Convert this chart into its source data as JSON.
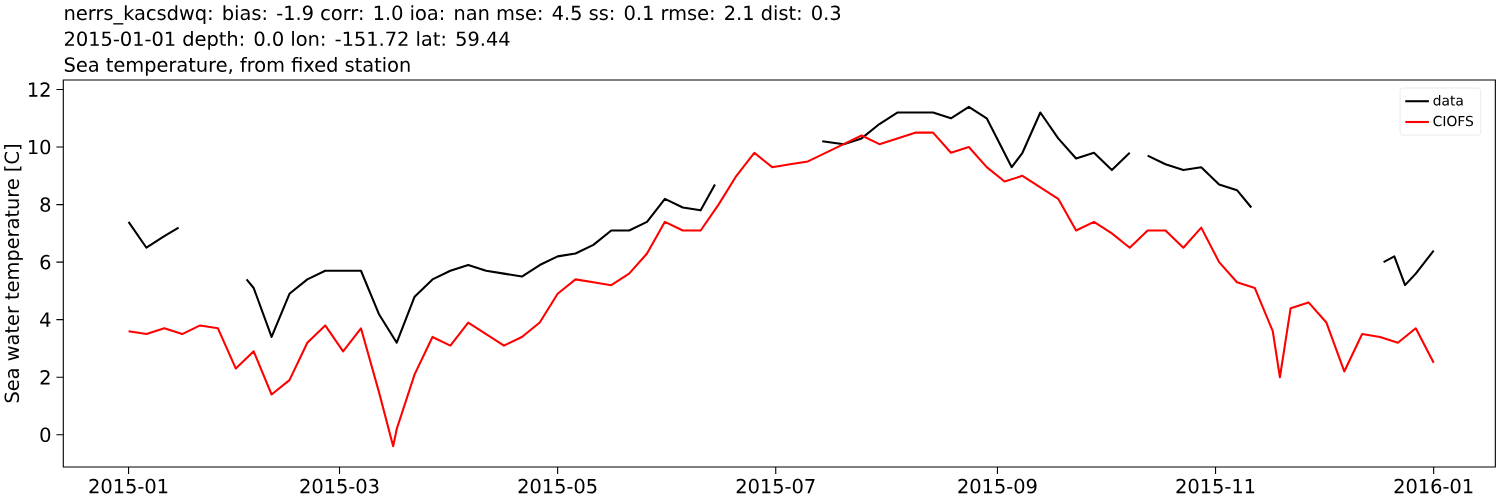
{
  "chart_data": {
    "type": "line",
    "title": "nerrs_kacsdwq: bias: -1.9  corr: 1.0  ioa: nan  mse: 4.5  ss: 0.1  rmse: 2.1  dist: 0.3",
    "subtitle": "2015-01-01 depth: 0.0 lon: -151.72 lat: 59.44",
    "annotations": [
      "Sea temperature, from fixed station"
    ],
    "ylabel": "Sea water temperature [C]",
    "xlim": [
      "2014-12-13T18:00",
      "2016-01-18T06:00"
    ],
    "xticks": [
      {
        "value": "2015-01-01",
        "label": "2015-01"
      },
      {
        "value": "2015-03-01",
        "label": "2015-03"
      },
      {
        "value": "2015-05-01",
        "label": "2015-05"
      },
      {
        "value": "2015-07-01",
        "label": "2015-07"
      },
      {
        "value": "2015-09-01",
        "label": "2015-09"
      },
      {
        "value": "2015-11-01",
        "label": "2015-11"
      },
      {
        "value": "2016-01-01",
        "label": "2016-01"
      }
    ],
    "ylim": [
      -1.12,
      12.33
    ],
    "yticks": [
      0,
      2,
      4,
      6,
      8,
      10,
      12
    ],
    "grid": false,
    "legend": "top right",
    "marker": "none",
    "line_style": "solid",
    "series": [
      {
        "name": "data",
        "color": "#000000",
        "x": [
          "2015-01-01",
          "2015-01-06",
          "2015-01-11",
          "2015-01-15",
          "2015-01-25",
          "2015-02-03",
          "2015-02-05",
          "2015-02-10",
          "2015-02-15",
          "2015-02-20",
          "2015-02-25",
          "2015-03-02",
          "2015-03-07",
          "2015-03-12",
          "2015-03-17",
          "2015-03-22",
          "2015-03-27",
          "2015-04-01",
          "2015-04-06",
          "2015-04-11",
          "2015-04-16",
          "2015-04-21",
          "2015-04-26",
          "2015-05-01",
          "2015-05-06",
          "2015-05-11",
          "2015-05-16",
          "2015-05-21",
          "2015-05-26",
          "2015-05-31",
          "2015-06-05",
          "2015-06-10",
          "2015-06-14",
          "2015-06-30",
          "2015-07-14",
          "2015-07-20",
          "2015-07-25",
          "2015-07-30",
          "2015-08-04",
          "2015-08-09",
          "2015-08-14",
          "2015-08-19",
          "2015-08-24",
          "2015-08-29",
          "2015-09-05",
          "2015-09-08",
          "2015-09-13",
          "2015-09-18",
          "2015-09-23",
          "2015-09-28",
          "2015-10-03",
          "2015-10-08",
          "2015-10-10",
          "2015-10-13",
          "2015-10-18",
          "2015-10-23",
          "2015-10-28",
          "2015-11-02",
          "2015-11-07",
          "2015-11-11",
          "2015-11-25",
          "2015-12-18",
          "2015-12-21",
          "2015-12-24",
          "2015-12-27",
          "2016-01-01"
        ],
        "values": [
          7.4,
          6.5,
          6.9,
          7.2,
          null,
          5.4,
          5.1,
          3.4,
          4.9,
          5.4,
          5.7,
          5.7,
          5.7,
          4.2,
          3.2,
          4.8,
          5.4,
          5.7,
          5.9,
          5.7,
          5.6,
          5.5,
          5.9,
          6.2,
          6.3,
          6.6,
          7.1,
          7.1,
          7.4,
          8.2,
          7.9,
          7.8,
          8.7,
          null,
          10.2,
          10.1,
          10.3,
          10.8,
          11.2,
          11.2,
          11.2,
          11.0,
          11.4,
          11.0,
          9.3,
          9.8,
          11.2,
          10.3,
          9.6,
          9.8,
          9.2,
          9.8,
          null,
          9.7,
          9.4,
          9.2,
          9.3,
          8.7,
          8.5,
          7.9,
          null,
          6.0,
          6.2,
          5.2,
          5.6,
          6.4
        ]
      },
      {
        "name": "CIOFS",
        "color": "#ff0000",
        "x": [
          "2015-01-01",
          "2015-01-06",
          "2015-01-11",
          "2015-01-16",
          "2015-01-21",
          "2015-01-26",
          "2015-01-31",
          "2015-02-05",
          "2015-02-10",
          "2015-02-15",
          "2015-02-20",
          "2015-02-25",
          "2015-03-02",
          "2015-03-07",
          "2015-03-12",
          "2015-03-16",
          "2015-03-17",
          "2015-03-22",
          "2015-03-27",
          "2015-04-01",
          "2015-04-06",
          "2015-04-11",
          "2015-04-16",
          "2015-04-21",
          "2015-04-26",
          "2015-05-01",
          "2015-05-06",
          "2015-05-11",
          "2015-05-16",
          "2015-05-21",
          "2015-05-26",
          "2015-05-31",
          "2015-06-05",
          "2015-06-10",
          "2015-06-15",
          "2015-06-20",
          "2015-06-25",
          "2015-06-30",
          "2015-07-05",
          "2015-07-10",
          "2015-07-15",
          "2015-07-20",
          "2015-07-25",
          "2015-07-30",
          "2015-08-04",
          "2015-08-09",
          "2015-08-14",
          "2015-08-19",
          "2015-08-24",
          "2015-08-29",
          "2015-09-03",
          "2015-09-08",
          "2015-09-13",
          "2015-09-18",
          "2015-09-23",
          "2015-09-28",
          "2015-10-03",
          "2015-10-08",
          "2015-10-13",
          "2015-10-18",
          "2015-10-23",
          "2015-10-28",
          "2015-11-02",
          "2015-11-07",
          "2015-11-12",
          "2015-11-17",
          "2015-11-19",
          "2015-11-22",
          "2015-11-27",
          "2015-12-02",
          "2015-12-07",
          "2015-12-12",
          "2015-12-17",
          "2015-12-22",
          "2015-12-27",
          "2016-01-01"
        ],
        "values": [
          3.6,
          3.5,
          3.7,
          3.5,
          3.8,
          3.7,
          2.3,
          2.9,
          1.4,
          1.9,
          3.2,
          3.8,
          2.9,
          3.7,
          1.5,
          -0.4,
          0.2,
          2.1,
          3.4,
          3.1,
          3.9,
          3.5,
          3.1,
          3.4,
          3.9,
          4.9,
          5.4,
          5.3,
          5.2,
          5.6,
          6.3,
          7.4,
          7.1,
          7.1,
          8.0,
          9.0,
          9.8,
          9.3,
          9.4,
          9.5,
          9.8,
          10.1,
          10.4,
          10.1,
          10.3,
          10.5,
          10.5,
          9.8,
          10.0,
          9.3,
          8.8,
          9.0,
          8.6,
          8.2,
          7.1,
          7.4,
          7.0,
          6.5,
          7.1,
          7.1,
          6.5,
          7.2,
          6.0,
          5.3,
          5.1,
          3.6,
          2.0,
          4.4,
          4.6,
          3.9,
          2.2,
          3.5,
          3.4,
          3.2,
          3.7,
          2.5
        ]
      }
    ]
  }
}
